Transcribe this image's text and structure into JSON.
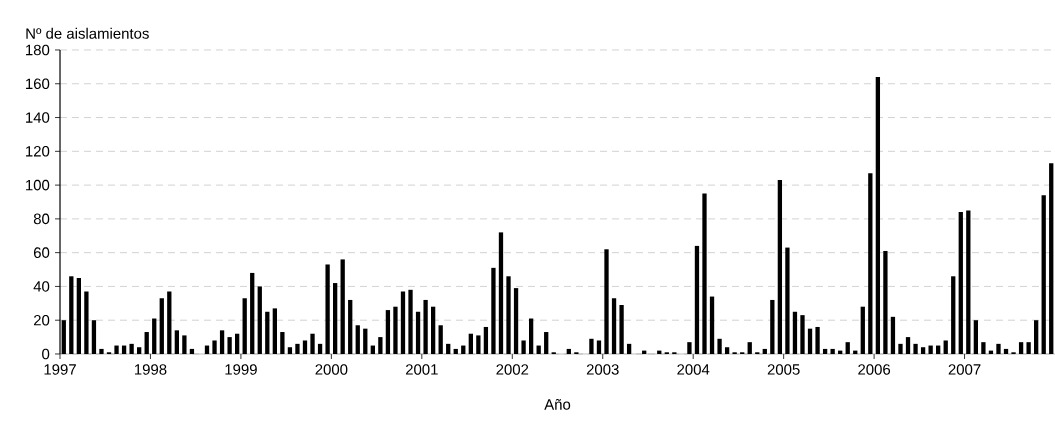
{
  "chart_data": {
    "type": "bar",
    "xlabel": "Año",
    "ylabel": "Nº de aislamientos",
    "color": "#000000",
    "x": [
      "1997-01",
      "1997-02",
      "1997-03",
      "1997-04",
      "1997-05",
      "1997-06",
      "1997-07",
      "1997-08",
      "1997-09",
      "1997-10",
      "1997-11",
      "1997-12",
      "1998-01",
      "1998-02",
      "1998-03",
      "1998-04",
      "1998-05",
      "1998-06",
      "1998-07",
      "1998-08",
      "1998-09",
      "1998-10",
      "1998-11",
      "1998-12",
      "1999-01",
      "1999-02",
      "1999-03",
      "1999-04",
      "1999-05",
      "1999-06",
      "1999-07",
      "1999-08",
      "1999-09",
      "1999-10",
      "1999-11",
      "1999-12",
      "2000-01",
      "2000-02",
      "2000-03",
      "2000-04",
      "2000-05",
      "2000-06",
      "2000-07",
      "2000-08",
      "2000-09",
      "2000-10",
      "2000-11",
      "2000-12",
      "2001-01",
      "2001-02",
      "2001-03",
      "2001-04",
      "2001-05",
      "2001-06",
      "2001-07",
      "2001-08",
      "2001-09",
      "2001-10",
      "2001-11",
      "2001-12",
      "2002-01",
      "2002-02",
      "2002-03",
      "2002-04",
      "2002-05",
      "2002-06",
      "2002-07",
      "2002-08",
      "2002-09",
      "2002-10",
      "2002-11",
      "2002-12",
      "2003-01",
      "2003-02",
      "2003-03",
      "2003-04",
      "2003-05",
      "2003-06",
      "2003-07",
      "2003-08",
      "2003-09",
      "2003-10",
      "2003-11",
      "2003-12",
      "2004-01",
      "2004-02",
      "2004-03",
      "2004-04",
      "2004-05",
      "2004-06",
      "2004-07",
      "2004-08",
      "2004-09",
      "2004-10",
      "2004-11",
      "2004-12",
      "2005-01",
      "2005-02",
      "2005-03",
      "2005-04",
      "2005-05",
      "2005-06",
      "2005-07",
      "2005-08",
      "2005-09",
      "2005-10",
      "2005-11",
      "2005-12",
      "2006-01",
      "2006-02",
      "2006-03",
      "2006-04",
      "2006-05",
      "2006-06",
      "2006-07",
      "2006-08",
      "2006-09",
      "2006-10",
      "2006-11",
      "2006-12",
      "2007-01",
      "2007-02",
      "2007-03",
      "2007-04",
      "2007-05",
      "2007-06",
      "2007-07",
      "2007-08",
      "2007-09",
      "2007-10",
      "2007-11",
      "2007-12"
    ],
    "values": [
      20,
      46,
      45,
      37,
      20,
      3,
      1,
      5,
      5,
      6,
      4,
      13,
      21,
      33,
      37,
      14,
      11,
      3,
      0,
      5,
      8,
      14,
      10,
      12,
      33,
      48,
      40,
      25,
      27,
      13,
      4,
      6,
      8,
      12,
      6,
      53,
      42,
      56,
      32,
      17,
      15,
      5,
      10,
      26,
      28,
      37,
      38,
      25,
      32,
      28,
      17,
      6,
      3,
      5,
      12,
      11,
      16,
      51,
      72,
      46,
      39,
      8,
      21,
      5,
      13,
      1,
      0,
      3,
      1,
      0,
      9,
      8,
      62,
      33,
      29,
      6,
      0,
      2,
      0,
      2,
      1,
      1,
      0,
      7,
      64,
      95,
      34,
      9,
      4,
      1,
      1,
      7,
      1,
      3,
      32,
      103,
      63,
      25,
      23,
      15,
      16,
      3,
      3,
      2,
      7,
      2,
      28,
      107,
      164,
      61,
      22,
      6,
      10,
      6,
      4,
      5,
      5,
      8,
      46,
      84,
      85,
      20,
      7,
      2,
      6,
      3,
      1,
      7,
      7,
      20,
      94,
      113
    ],
    "xlim": [
      "1997",
      "2008"
    ],
    "xticks": [
      "1997",
      "1998",
      "1999",
      "2000",
      "2001",
      "2002",
      "2003",
      "2004",
      "2005",
      "2006",
      "2007"
    ],
    "ylim": [
      0,
      180
    ],
    "yticks": [
      0,
      20,
      40,
      60,
      80,
      100,
      120,
      140,
      160,
      180
    ],
    "grid": "y"
  }
}
